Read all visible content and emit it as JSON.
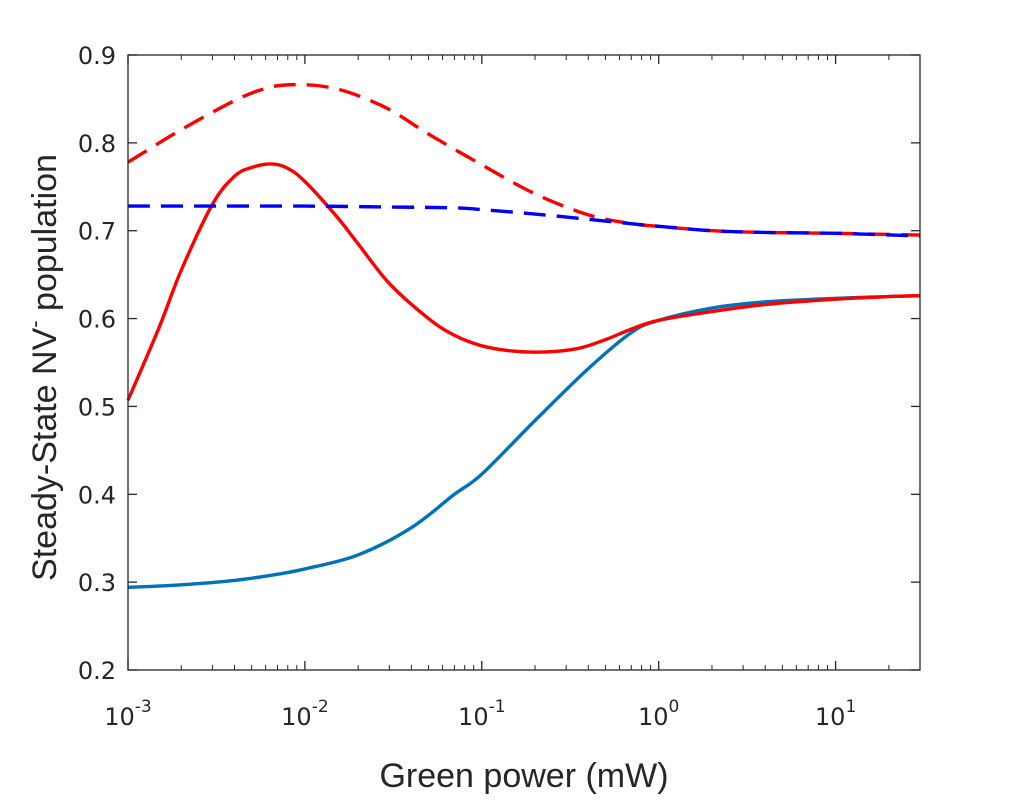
{
  "chart_data": {
    "type": "line",
    "xscale": "log",
    "xlim": [
      0.001,
      30
    ],
    "ylim": [
      0.2,
      0.9
    ],
    "xlabel": "Green power (mW)",
    "ylabel": "Steady-State NV",
    "ylabel_superscript": "-",
    "ylabel_suffix": " population",
    "x_ticks": [
      {
        "value": 0.001,
        "base": "10",
        "exp": "-3"
      },
      {
        "value": 0.01,
        "base": "10",
        "exp": "-2"
      },
      {
        "value": 0.1,
        "base": "10",
        "exp": "-1"
      },
      {
        "value": 1,
        "base": "10",
        "exp": "0"
      },
      {
        "value": 10,
        "base": "10",
        "exp": "1"
      }
    ],
    "y_ticks": [
      0.2,
      0.3,
      0.4,
      0.5,
      0.6,
      0.7,
      0.8,
      0.9
    ],
    "y_tick_labels": [
      "0.2",
      "0.3",
      "0.4",
      "0.5",
      "0.6",
      "0.7",
      "0.8",
      "0.9"
    ],
    "series": [
      {
        "name": "solid-blue",
        "color": "#0072BD",
        "style": "solid",
        "x": [
          0.001,
          0.002,
          0.004,
          0.007,
          0.01,
          0.02,
          0.04,
          0.07,
          0.1,
          0.2,
          0.4,
          0.7,
          1,
          2,
          4,
          10,
          20,
          30
        ],
        "y": [
          0.294,
          0.297,
          0.302,
          0.309,
          0.315,
          0.331,
          0.362,
          0.4,
          0.423,
          0.484,
          0.543,
          0.584,
          0.598,
          0.612,
          0.619,
          0.623,
          0.625,
          0.626
        ]
      },
      {
        "name": "solid-red",
        "color": "#FF0000",
        "style": "solid",
        "x": [
          0.001,
          0.0015,
          0.002,
          0.003,
          0.004,
          0.005,
          0.0065,
          0.008,
          0.01,
          0.015,
          0.02,
          0.03,
          0.05,
          0.07,
          0.1,
          0.15,
          0.23,
          0.35,
          0.5,
          0.7,
          1,
          2,
          4,
          10,
          20,
          30
        ],
        "y": [
          0.507,
          0.59,
          0.655,
          0.73,
          0.762,
          0.772,
          0.776,
          0.771,
          0.756,
          0.717,
          0.685,
          0.64,
          0.6,
          0.581,
          0.569,
          0.563,
          0.562,
          0.566,
          0.576,
          0.588,
          0.598,
          0.608,
          0.616,
          0.622,
          0.625,
          0.626
        ]
      },
      {
        "name": "dashed-red",
        "color": "#FF0000",
        "style": "dashed",
        "x": [
          0.001,
          0.002,
          0.004,
          0.006,
          0.008,
          0.012,
          0.018,
          0.03,
          0.05,
          0.1,
          0.2,
          0.4,
          0.7,
          1,
          2,
          4,
          10,
          30
        ],
        "y": [
          0.778,
          0.815,
          0.848,
          0.862,
          0.866,
          0.865,
          0.857,
          0.838,
          0.81,
          0.775,
          0.742,
          0.718,
          0.708,
          0.705,
          0.7,
          0.698,
          0.697,
          0.695
        ]
      },
      {
        "name": "dashed-blue",
        "color": "#0000FF",
        "style": "dashed",
        "x": [
          0.001,
          0.003,
          0.01,
          0.03,
          0.07,
          0.1,
          0.2,
          0.4,
          0.7,
          1,
          2,
          4,
          10,
          30
        ],
        "y": [
          0.728,
          0.728,
          0.728,
          0.727,
          0.726,
          0.724,
          0.719,
          0.713,
          0.708,
          0.705,
          0.7,
          0.698,
          0.697,
          0.694
        ]
      }
    ]
  }
}
